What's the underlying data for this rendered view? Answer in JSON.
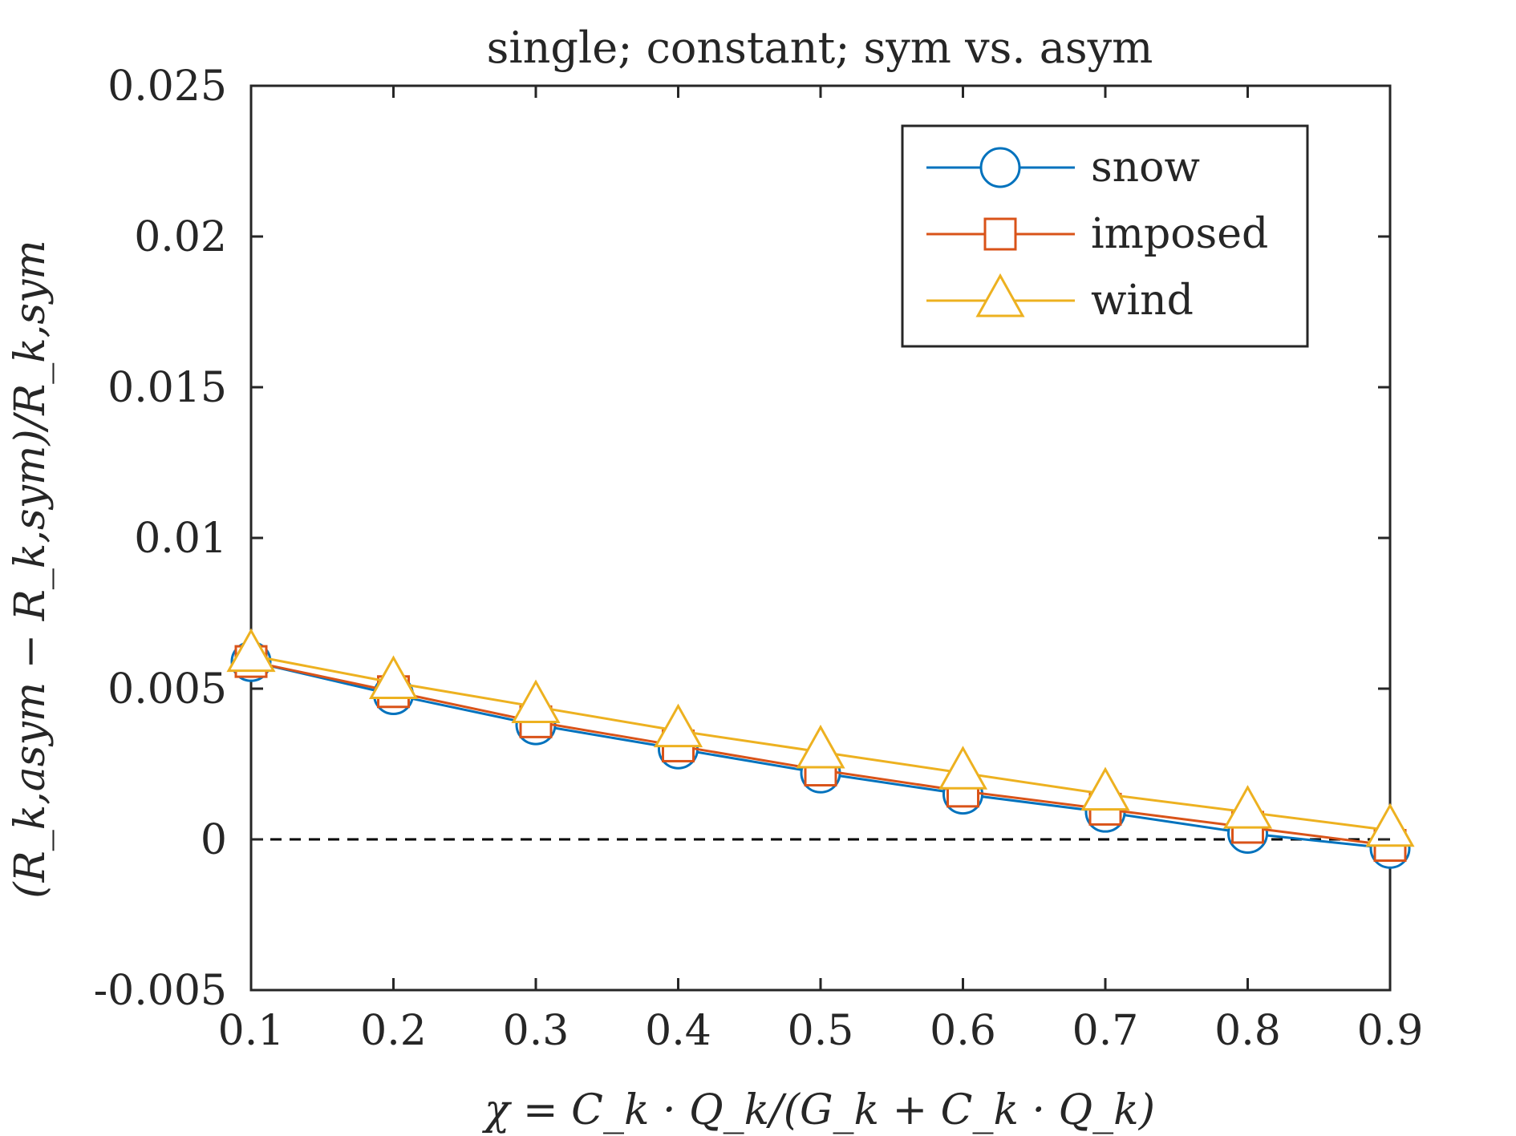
{
  "chart_data": {
    "type": "line",
    "title": "single; constant; sym vs. asym",
    "xlabel": "χ = C_k · Q_k/(G_k + C_k · Q_k)",
    "ylabel": "(R_k,asym − R_k,sym)/R_k,sym",
    "x": [
      0.1,
      0.2,
      0.3,
      0.4,
      0.5,
      0.6,
      0.7,
      0.8,
      0.9
    ],
    "xlim": [
      0.1,
      0.9
    ],
    "ylim": [
      -0.005,
      0.025
    ],
    "xticks": [
      "0.1",
      "0.2",
      "0.3",
      "0.4",
      "0.5",
      "0.6",
      "0.7",
      "0.8",
      "0.9"
    ],
    "yticks": [
      "-0.005",
      "0",
      "0.005",
      "0.01",
      "0.015",
      "0.02",
      "0.025"
    ],
    "grid": false,
    "legend_position": "top-right",
    "reference_line": {
      "y": 0,
      "style": "dashed",
      "color": "#000000"
    },
    "series": [
      {
        "name": "snow",
        "marker": "circle",
        "color": "#0072BD",
        "values": [
          0.0059,
          0.0048,
          0.0038,
          0.003,
          0.0022,
          0.0015,
          0.0009,
          0.0002,
          -0.0003
        ]
      },
      {
        "name": "imposed",
        "marker": "square",
        "color": "#D95319",
        "values": [
          0.0059,
          0.0049,
          0.0039,
          0.0031,
          0.0023,
          0.0016,
          0.001,
          0.0004,
          -0.0002
        ]
      },
      {
        "name": "wind",
        "marker": "triangle",
        "color": "#EDB120",
        "values": [
          0.0061,
          0.0052,
          0.0044,
          0.0036,
          0.0029,
          0.0022,
          0.0015,
          0.0009,
          0.0003
        ]
      }
    ]
  }
}
